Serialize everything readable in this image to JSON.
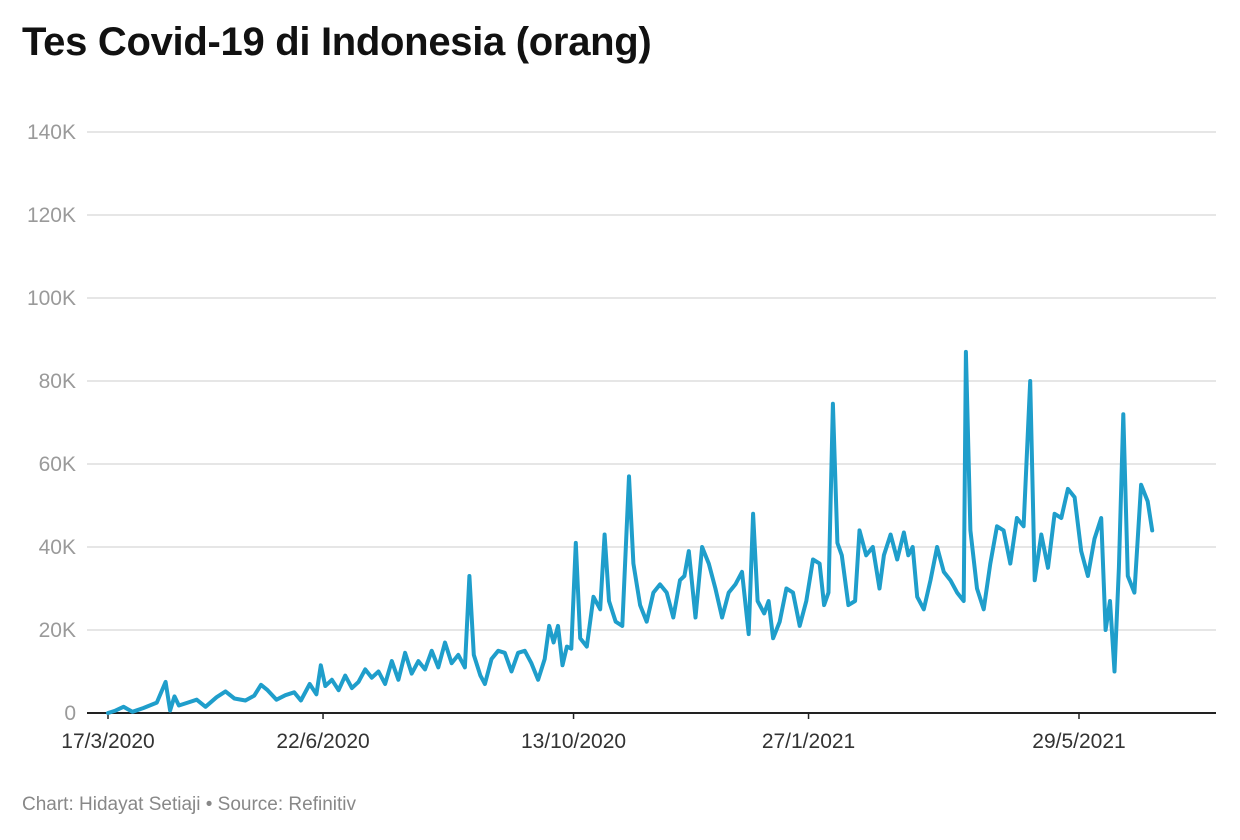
{
  "chart_data": {
    "type": "line",
    "title": "Tes Covid-19 di Indonesia (orang)",
    "xlabel": "",
    "ylabel": "",
    "ylim": [
      0,
      150000
    ],
    "grid": true,
    "legend": "none",
    "line_color": "#1f9ecb",
    "y_ticks": [
      {
        "value": 0,
        "label": "0"
      },
      {
        "value": 20000,
        "label": "20K"
      },
      {
        "value": 40000,
        "label": "40K"
      },
      {
        "value": 60000,
        "label": "60K"
      },
      {
        "value": 80000,
        "label": "80K"
      },
      {
        "value": 100000,
        "label": "100K"
      },
      {
        "value": 120000,
        "label": "120K"
      },
      {
        "value": 140000,
        "label": "140K"
      }
    ],
    "x_ticks": [
      "17/3/2020",
      "22/6/2020",
      "13/10/2020",
      "27/1/2021",
      "29/5/2021"
    ],
    "series": [
      {
        "points": [
          [
            "17/3/2020",
            0
          ],
          [
            "20/3/2020",
            500
          ],
          [
            "24/3/2020",
            1500
          ],
          [
            "28/3/2020",
            300
          ],
          [
            "2/4/2020",
            1200
          ],
          [
            "8/4/2020",
            2500
          ],
          [
            "12/4/2020",
            7500
          ],
          [
            "14/4/2020",
            600
          ],
          [
            "16/4/2020",
            4000
          ],
          [
            "18/4/2020",
            1800
          ],
          [
            "22/4/2020",
            2500
          ],
          [
            "26/4/2020",
            3200
          ],
          [
            "30/4/2020",
            1500
          ],
          [
            "5/5/2020",
            3800
          ],
          [
            "9/5/2020",
            5200
          ],
          [
            "13/5/2020",
            3500
          ],
          [
            "18/5/2020",
            3000
          ],
          [
            "22/5/2020",
            4200
          ],
          [
            "25/5/2020",
            6800
          ],
          [
            "28/5/2020",
            5500
          ],
          [
            "1/6/2020",
            3200
          ],
          [
            "5/6/2020",
            4300
          ],
          [
            "9/6/2020",
            5000
          ],
          [
            "12/6/2020",
            3000
          ],
          [
            "16/6/2020",
            7000
          ],
          [
            "19/6/2020",
            4500
          ],
          [
            "21/6/2020",
            11500
          ],
          [
            "23/6/2020",
            6500
          ],
          [
            "26/6/2020",
            8000
          ],
          [
            "29/6/2020",
            5500
          ],
          [
            "2/7/2020",
            9000
          ],
          [
            "5/7/2020",
            6000
          ],
          [
            "8/7/2020",
            7500
          ],
          [
            "11/7/2020",
            10500
          ],
          [
            "14/7/2020",
            8500
          ],
          [
            "17/7/2020",
            10000
          ],
          [
            "20/7/2020",
            7000
          ],
          [
            "23/7/2020",
            12500
          ],
          [
            "26/7/2020",
            8000
          ],
          [
            "29/7/2020",
            14500
          ],
          [
            "1/8/2020",
            9500
          ],
          [
            "4/8/2020",
            12500
          ],
          [
            "7/8/2020",
            10500
          ],
          [
            "10/8/2020",
            15000
          ],
          [
            "13/8/2020",
            11000
          ],
          [
            "16/8/2020",
            17000
          ],
          [
            "19/8/2020",
            12000
          ],
          [
            "22/8/2020",
            14000
          ],
          [
            "25/8/2020",
            11000
          ],
          [
            "27/8/2020",
            33000
          ],
          [
            "29/8/2020",
            14000
          ],
          [
            "1/9/2020",
            9000
          ],
          [
            "3/9/2020",
            7000
          ],
          [
            "6/9/2020",
            13000
          ],
          [
            "9/9/2020",
            15000
          ],
          [
            "12/9/2020",
            14500
          ],
          [
            "15/9/2020",
            10000
          ],
          [
            "18/9/2020",
            14500
          ],
          [
            "21/9/2020",
            15000
          ],
          [
            "24/9/2020",
            12000
          ],
          [
            "27/9/2020",
            8000
          ],
          [
            "30/9/2020",
            13000
          ],
          [
            "2/10/2020",
            21000
          ],
          [
            "4/10/2020",
            17000
          ],
          [
            "6/10/2020",
            21000
          ],
          [
            "8/10/2020",
            11500
          ],
          [
            "10/10/2020",
            16000
          ],
          [
            "12/10/2020",
            15500
          ],
          [
            "14/10/2020",
            41000
          ],
          [
            "16/10/2020",
            18000
          ],
          [
            "19/10/2020",
            16000
          ],
          [
            "22/10/2020",
            28000
          ],
          [
            "25/10/2020",
            25000
          ],
          [
            "27/10/2020",
            43000
          ],
          [
            "29/10/2020",
            27000
          ],
          [
            "1/11/2020",
            22000
          ],
          [
            "4/11/2020",
            21000
          ],
          [
            "7/11/2020",
            57000
          ],
          [
            "9/11/2020",
            36000
          ],
          [
            "12/11/2020",
            26000
          ],
          [
            "15/11/2020",
            22000
          ],
          [
            "18/11/2020",
            29000
          ],
          [
            "21/11/2020",
            31000
          ],
          [
            "24/11/2020",
            29000
          ],
          [
            "27/11/2020",
            23000
          ],
          [
            "30/11/2020",
            32000
          ],
          [
            "2/12/2020",
            33000
          ],
          [
            "4/12/2020",
            39000
          ],
          [
            "7/12/2020",
            23000
          ],
          [
            "10/12/2020",
            40000
          ],
          [
            "13/12/2020",
            36000
          ],
          [
            "16/12/2020",
            30000
          ],
          [
            "19/12/2020",
            23000
          ],
          [
            "22/12/2020",
            29000
          ],
          [
            "25/12/2020",
            31000
          ],
          [
            "28/12/2020",
            34000
          ],
          [
            "31/12/2020",
            19000
          ],
          [
            "2/1/2021",
            48000
          ],
          [
            "4/1/2021",
            27000
          ],
          [
            "7/1/2021",
            24000
          ],
          [
            "9/1/2021",
            27000
          ],
          [
            "11/1/2021",
            18000
          ],
          [
            "14/1/2021",
            22000
          ],
          [
            "17/1/2021",
            30000
          ],
          [
            "20/1/2021",
            29000
          ],
          [
            "23/1/2021",
            21000
          ],
          [
            "26/1/2021",
            27000
          ],
          [
            "29/1/2021",
            37000
          ],
          [
            "1/2/2021",
            36000
          ],
          [
            "3/2/2021",
            26000
          ],
          [
            "5/2/2021",
            29000
          ],
          [
            "7/2/2021",
            74500
          ],
          [
            "9/2/2021",
            41000
          ],
          [
            "11/2/2021",
            38000
          ],
          [
            "14/2/2021",
            26000
          ],
          [
            "17/2/2021",
            27000
          ],
          [
            "19/2/2021",
            44000
          ],
          [
            "22/2/2021",
            38000
          ],
          [
            "25/2/2021",
            40000
          ],
          [
            "28/2/2021",
            30000
          ],
          [
            "2/3/2021",
            38000
          ],
          [
            "5/3/2021",
            43000
          ],
          [
            "8/3/2021",
            37000
          ],
          [
            "11/3/2021",
            43500
          ],
          [
            "13/3/2021",
            38000
          ],
          [
            "15/3/2021",
            40000
          ],
          [
            "17/3/2021",
            28000
          ],
          [
            "20/3/2021",
            25000
          ],
          [
            "23/3/2021",
            32000
          ],
          [
            "26/3/2021",
            40000
          ],
          [
            "29/3/2021",
            34000
          ],
          [
            "1/4/2021",
            32000
          ],
          [
            "4/4/2021",
            29000
          ],
          [
            "7/4/2021",
            27000
          ],
          [
            "8/4/2021",
            87000
          ],
          [
            "10/4/2021",
            44000
          ],
          [
            "13/4/2021",
            30000
          ],
          [
            "16/4/2021",
            25000
          ],
          [
            "19/4/2021",
            36000
          ],
          [
            "22/4/2021",
            45000
          ],
          [
            "25/4/2021",
            44000
          ],
          [
            "28/4/2021",
            36000
          ],
          [
            "1/5/2021",
            47000
          ],
          [
            "4/5/2021",
            45000
          ],
          [
            "7/5/2021",
            80000
          ],
          [
            "9/5/2021",
            32000
          ],
          [
            "12/5/2021",
            43000
          ],
          [
            "15/5/2021",
            35000
          ],
          [
            "18/5/2021",
            48000
          ],
          [
            "21/5/2021",
            47000
          ],
          [
            "24/5/2021",
            54000
          ],
          [
            "27/5/2021",
            52000
          ],
          [
            "30/5/2021",
            39000
          ],
          [
            "2/6/2021",
            33000
          ],
          [
            "5/6/2021",
            42000
          ],
          [
            "8/6/2021",
            47000
          ],
          [
            "10/6/2021",
            20000
          ],
          [
            "12/6/2021",
            27000
          ],
          [
            "14/6/2021",
            10000
          ],
          [
            "16/6/2021",
            35000
          ],
          [
            "18/6/2021",
            72000
          ],
          [
            "20/6/2021",
            33000
          ],
          [
            "23/6/2021",
            29000
          ],
          [
            "26/6/2021",
            55000
          ],
          [
            "29/6/2021",
            51000
          ],
          [
            "1/7/2021",
            44000
          ]
        ]
      }
    ],
    "footer": "Chart: Hidayat Setiaji • Source: Refinitiv"
  }
}
